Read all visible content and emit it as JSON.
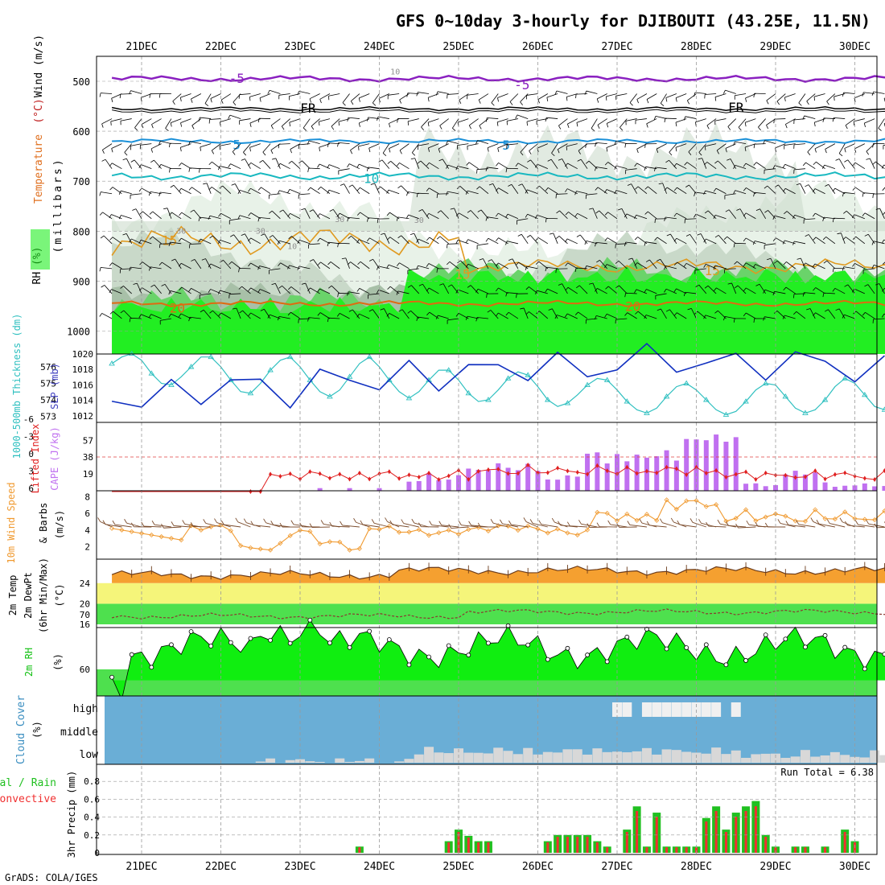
{
  "chart_data": {
    "type": "meteogram",
    "title": "GFS 0~10day 3-hourly for DJIBOUTI (43.25E, 11.5N)",
    "footer": "GrADS: COLA/IGES",
    "dates": [
      "21DEC",
      "22DEC",
      "23DEC",
      "24DEC",
      "25DEC",
      "26DEC",
      "27DEC",
      "28DEC",
      "29DEC",
      "30DEC"
    ],
    "colors": {
      "rh_light": "#e8f2e8",
      "rh_mid": "#c9d9c9",
      "rh_dark": "#a8c0a8",
      "rh_green": "#6ad36a",
      "rh_bright": "#22ee22",
      "temp_purple": "#8a20c0",
      "temp_black": "#000000",
      "temp_blue": "#1a90d8",
      "temp_cyan": "#18b8c0",
      "temp_orange": "#e09a20",
      "temp_dorange": "#e06a10",
      "thickness": "#30c0c0",
      "slp": "#1030c0",
      "lifted": "#e02020",
      "cape": "#c070f0",
      "wind_speed": "#f09a30",
      "barbs": "#7a4a2a",
      "t2m": "#f5a030",
      "td_band": "#f5f57a",
      "green_band": "#4ee04e",
      "rh2m": "#10ee10",
      "cloud": "#6aaed6",
      "cloud_grey": "#d8d8d8",
      "precip_total": "#20c020",
      "precip_conv": "#f03030"
    },
    "panels": {
      "upper": {
        "ylabel_rh": "RH (%)",
        "ylabel_temp": "Temperature",
        "ylabel_unit": "(°C)",
        "ylabel_wind": "Wind (m/s)",
        "ylabel_pressure": "(millibars)",
        "y_ticks": [
          500,
          600,
          700,
          800,
          900,
          1000
        ],
        "contour_labels": [
          {
            "text": "-5",
            "day": 1.2,
            "p": 495,
            "color": "#8a20c0"
          },
          {
            "text": "-5",
            "day": 4.8,
            "p": 508,
            "color": "#8a20c0"
          },
          {
            "text": "FR",
            "day": 2.1,
            "p": 555,
            "color": "#000000"
          },
          {
            "text": "FR",
            "day": 7.5,
            "p": 553,
            "color": "#000000"
          },
          {
            "text": "5",
            "day": 1.2,
            "p": 628,
            "color": "#1a90d8"
          },
          {
            "text": "5",
            "day": 4.6,
            "p": 629,
            "color": "#1a90d8"
          },
          {
            "text": "10",
            "day": 2.9,
            "p": 696,
            "color": "#18b8c0"
          },
          {
            "text": "15",
            "day": 0.35,
            "p": 820,
            "color": "#e09a20"
          },
          {
            "text": "15",
            "day": 4.05,
            "p": 887,
            "color": "#e09a20"
          },
          {
            "text": "15",
            "day": 7.2,
            "p": 880,
            "color": "#e09a20"
          },
          {
            "text": "20",
            "day": 0.45,
            "p": 955,
            "color": "#e06a10"
          },
          {
            "text": "20",
            "day": 6.2,
            "p": 952,
            "color": "#e06a10"
          },
          {
            "text": "30",
            "day": 0.5,
            "p": 797,
            "color": "#909090"
          },
          {
            "text": "30",
            "day": 1.5,
            "p": 797,
            "color": "#909090"
          },
          {
            "text": "30",
            "day": 2.5,
            "p": 774,
            "color": "#909090"
          },
          {
            "text": "30",
            "day": 3.5,
            "p": 775,
            "color": "#909090"
          },
          {
            "text": "10",
            "day": 1.9,
            "p": 828,
            "color": "#909090"
          },
          {
            "text": "10",
            "day": 3.2,
            "p": 478,
            "color": "#909090"
          }
        ]
      },
      "thickness_slp": {
        "ylabel_thickness": "1000-500mb Thickness (dm)",
        "ylabel_slp": "SLP (mb)",
        "thickness_ticks": [
          573,
          574,
          575,
          576
        ],
        "slp_ticks": [
          1012,
          1014,
          1016,
          1018,
          1020
        ],
        "thickness": [
          576.2,
          576.6,
          576.8,
          576.4,
          575.6,
          575.0,
          574.9,
          575.4,
          576.0,
          576.6,
          576.6,
          576.0,
          575.2,
          574.5,
          574.4,
          575.0,
          575.8,
          576.4,
          576.6,
          576.0,
          575.2,
          574.5,
          574.2,
          574.6,
          575.4,
          576.2,
          576.6,
          576.0,
          575.2,
          574.5,
          574.1,
          574.5,
          575.2,
          575.8,
          575.8,
          575.2,
          574.4,
          573.9,
          574.0,
          574.6,
          575.3,
          575.7,
          575.5,
          574.8,
          574.0,
          573.6,
          573.8,
          574.3,
          574.9,
          575.3,
          575.2,
          574.6,
          573.9,
          573.4,
          573.2,
          573.5,
          574.2,
          574.8,
          575.0,
          574.6,
          574.0,
          573.4,
          573.1,
          573.3,
          573.9,
          574.6,
          575.0,
          574.9,
          574.2,
          573.5,
          573.2,
          573.4,
          574.0,
          574.8,
          575.3,
          575.0,
          574.3,
          573.6,
          573.4,
          573.6
        ]
      },
      "cape_li": {
        "ylabel_li": "Lifted Index",
        "ylabel_cape": "CAPE (J/kg)",
        "cape_ticks": [
          19,
          38,
          57
        ],
        "li_ticks": [
          "6",
          "3",
          "0",
          "-3",
          "-6"
        ]
      },
      "wind10m": {
        "ylabel_speed": "10m Wind Speed",
        "ylabel_barbs": "& Barbs",
        "ylabel_unit": "(m/s)",
        "y_ticks": [
          2,
          4,
          6,
          8
        ]
      },
      "temp2m": {
        "ylabel_temp": "2m Temp",
        "ylabel_dewpt": "2m DewPt",
        "ylabel_minmax": "(6hr Min/Max)",
        "ylabel_unit": "(°C)",
        "y_ticks": [
          16,
          20,
          24
        ]
      },
      "rh2m": {
        "ylabel": "2m RH",
        "ylabel_unit": "(%)",
        "y_ticks": [
          60,
          70
        ]
      },
      "cloud": {
        "ylabel": "Cloud Cover",
        "ylabel_unit": "(%)",
        "levels": [
          "high",
          "middle",
          "low"
        ]
      },
      "precip": {
        "ylabel_total": "Total / Rain",
        "ylabel_conv": "Convective",
        "ylabel": "3hr Precip (mm)",
        "y_ticks": [
          0,
          0.2,
          0.4,
          0.6,
          0.8
        ],
        "run_total": "Run Total = 6.38"
      }
    }
  }
}
